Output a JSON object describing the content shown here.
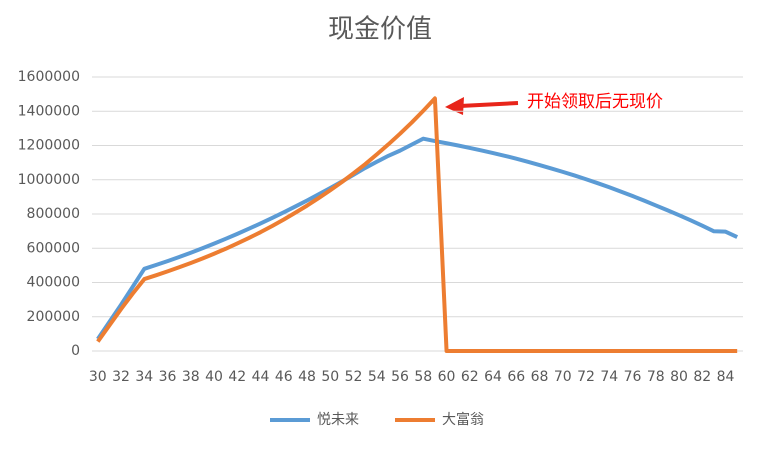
{
  "chart_data": {
    "type": "line",
    "title": "现金价值",
    "x": [
      30,
      31,
      32,
      33,
      34,
      35,
      36,
      37,
      38,
      39,
      40,
      41,
      42,
      43,
      44,
      45,
      46,
      47,
      48,
      49,
      50,
      51,
      52,
      53,
      54,
      55,
      56,
      57,
      58,
      59,
      60,
      61,
      62,
      63,
      64,
      65,
      66,
      67,
      68,
      69,
      70,
      71,
      72,
      73,
      74,
      75,
      76,
      77,
      78,
      79,
      80,
      81,
      82,
      83,
      84,
      85
    ],
    "xlim": [
      29.5,
      85.5
    ],
    "xticks": [
      30,
      32,
      34,
      36,
      38,
      40,
      42,
      44,
      46,
      48,
      50,
      52,
      54,
      56,
      58,
      60,
      62,
      64,
      66,
      68,
      70,
      72,
      74,
      76,
      78,
      80,
      82,
      84
    ],
    "ylim": [
      0,
      1600000
    ],
    "yticks": [
      0,
      200000,
      400000,
      600000,
      800000,
      1000000,
      1200000,
      1400000,
      1600000
    ],
    "grid": true,
    "legend": "bottom",
    "annotation": "开始领取后无现价",
    "series": [
      {
        "name": "悦未来",
        "color": "#5b9bd5",
        "values": [
          70000,
          170000,
          270000,
          375000,
          480000,
          502000,
          525000,
          549000,
          574000,
          600000,
          627000,
          655000,
          684000,
          714000,
          745000,
          777000,
          810000,
          844000,
          879000,
          915000,
          952000,
          990000,
          1029000,
          1069000,
          1105000,
          1140000,
          1170000,
          1205000,
          1240000,
          1226000,
          1213000,
          1200000,
          1186000,
          1171000,
          1156000,
          1140000,
          1123000,
          1105000,
          1086000,
          1066000,
          1046000,
          1025000,
          1003000,
          980000,
          956000,
          931000,
          905000,
          878000,
          850000,
          822000,
          793000,
          763000,
          732000,
          699000,
          697000,
          665000
        ]
      },
      {
        "name": "大富翁",
        "color": "#ed7d31",
        "values": [
          55000,
          150000,
          245000,
          335000,
          420000,
          442000,
          465000,
          489000,
          514000,
          540000,
          568000,
          597000,
          628000,
          660000,
          694000,
          730000,
          768000,
          808000,
          849000,
          893000,
          939000,
          987000,
          1038000,
          1091000,
          1148000,
          1207000,
          1269000,
          1334000,
          1403000,
          1475000,
          0,
          0,
          0,
          0,
          0,
          0,
          0,
          0,
          0,
          0,
          0,
          0,
          0,
          0,
          0,
          0,
          0,
          0,
          0,
          0,
          0,
          0,
          0,
          0,
          0,
          0
        ]
      }
    ]
  }
}
